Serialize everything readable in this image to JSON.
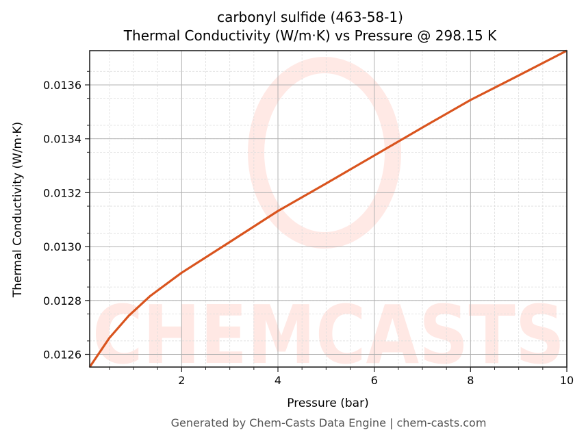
{
  "chart_data": {
    "type": "line",
    "title": "carbonyl sulfide (463-58-1)",
    "subtitle": "Thermal Conductivity (W/m·K) vs Pressure @ 298.15 K",
    "xlabel": "Pressure (bar)",
    "ylabel": "Thermal Conductivity (W/m·K)",
    "xlim": [
      0.09,
      10
    ],
    "ylim": [
      0.012553,
      0.013727
    ],
    "xticks": [
      2,
      4,
      6,
      8,
      10
    ],
    "xtick_labels": [
      "2",
      "4",
      "6",
      "8",
      "10"
    ],
    "yticks": [
      0.0126,
      0.0128,
      0.013,
      0.0132,
      0.0134,
      0.0136
    ],
    "ytick_labels": [
      "0.0126",
      "0.0128",
      "0.0130",
      "0.0132",
      "0.0134",
      "0.0136"
    ],
    "grid": true,
    "legend": null,
    "series": [
      {
        "name": "Thermal Conductivity",
        "color": "#d9541e",
        "x": [
          0.09,
          0.5,
          0.9,
          1.35,
          2,
          3,
          4,
          5,
          6,
          7,
          8,
          9,
          10
        ],
        "y": [
          0.012553,
          0.012661,
          0.012743,
          0.012817,
          0.012903,
          0.013017,
          0.013132,
          0.013234,
          0.013338,
          0.013442,
          0.013544,
          0.013635,
          0.013727
        ]
      }
    ],
    "watermark": "CHEMCASTS"
  },
  "footer": "Generated by Chem-Casts Data Engine | chem-casts.com"
}
